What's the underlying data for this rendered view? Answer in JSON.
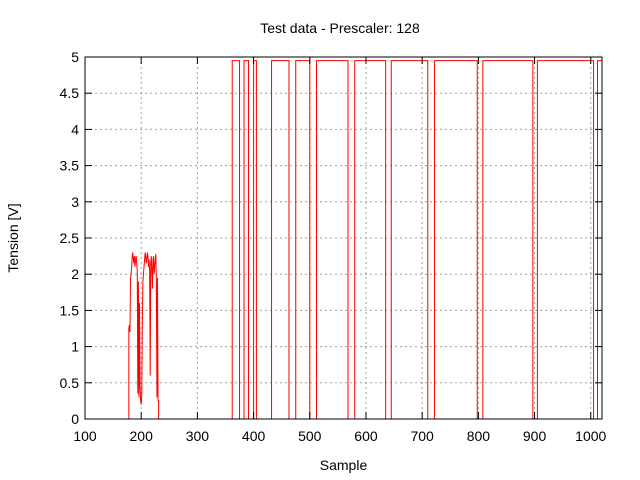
{
  "chart_data": {
    "type": "line",
    "title": "Test data - Prescaler: 128",
    "xlabel": "Sample",
    "ylabel": "Tension [V]",
    "xlim": [
      100,
      1020
    ],
    "ylim": [
      0,
      5
    ],
    "xticks": [
      100,
      200,
      300,
      400,
      500,
      600,
      700,
      800,
      900,
      1000
    ],
    "yticks": [
      0,
      0.5,
      1,
      1.5,
      2,
      2.5,
      3,
      3.5,
      4,
      4.5,
      5
    ],
    "grid": true,
    "line_color": "#ff0000",
    "series": [
      {
        "x": [
          100,
          178,
          178,
          179,
          180,
          181,
          182,
          183,
          184,
          185,
          186,
          187,
          188,
          189,
          190,
          191,
          192,
          193,
          194,
          195,
          196,
          197,
          198,
          199,
          200,
          201,
          202,
          203,
          204,
          205,
          206,
          207,
          208,
          209,
          210,
          211,
          212,
          213,
          214,
          215,
          216,
          217,
          218,
          219,
          220,
          221,
          222,
          223,
          224,
          225,
          226,
          227,
          228,
          229,
          230,
          231,
          231,
          362,
          362,
          375,
          375,
          383,
          383,
          391,
          391,
          400,
          400,
          405,
          405,
          432,
          432,
          463,
          463,
          475,
          475,
          500,
          500,
          512,
          512,
          568,
          568,
          580,
          580,
          635,
          635,
          645,
          645,
          710,
          710,
          722,
          722,
          798,
          798,
          808,
          808,
          897,
          897,
          905,
          905,
          1005,
          1005,
          1012,
          1012,
          1020
        ],
        "y": [
          0,
          0,
          1.25,
          1.3,
          1.2,
          1.95,
          2.0,
          2.1,
          2.25,
          2.3,
          2.2,
          2.15,
          2.25,
          2.1,
          2.2,
          2.25,
          2.15,
          2.05,
          0.35,
          1.9,
          0.3,
          1.6,
          0.45,
          0.25,
          0.2,
          0.35,
          1.3,
          1.9,
          2.0,
          2.1,
          2.2,
          2.3,
          2.25,
          2.15,
          2.2,
          2.3,
          2.25,
          2.1,
          2.2,
          2.05,
          0.6,
          2.15,
          2.25,
          2.05,
          1.8,
          2.2,
          2.25,
          2.0,
          2.1,
          2.2,
          2.28,
          1.9,
          0.3,
          1.95,
          0.25,
          0.25,
          0,
          0,
          4.95,
          4.95,
          0,
          0,
          4.95,
          4.95,
          0,
          0,
          4.95,
          4.95,
          0,
          0,
          4.95,
          4.95,
          0,
          0,
          4.95,
          4.95,
          0,
          0,
          4.95,
          4.95,
          0,
          0,
          4.95,
          4.95,
          0,
          0,
          4.95,
          4.95,
          0,
          0,
          4.95,
          4.95,
          0,
          0,
          4.95,
          4.95,
          0,
          0,
          4.95,
          4.95,
          0,
          0,
          4.95,
          4.95
        ]
      }
    ]
  }
}
